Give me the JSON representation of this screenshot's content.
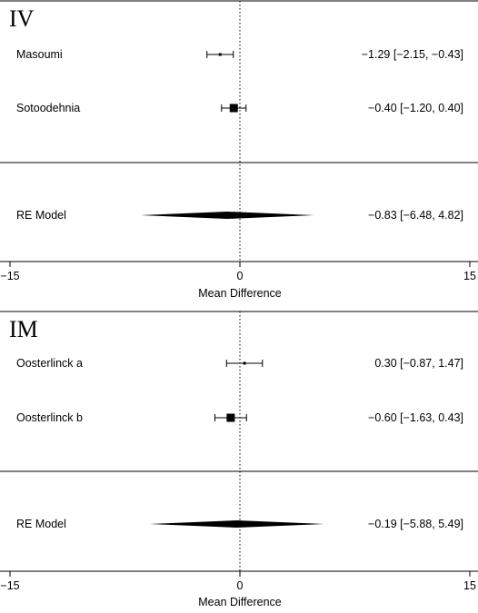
{
  "chart_data": [
    {
      "type": "forest",
      "title": "IV",
      "xlabel": "Mean Difference",
      "xlim": [
        -15,
        15
      ],
      "xticks": [
        -15,
        0,
        15
      ],
      "tick_labels": [
        "−15",
        "0",
        "15"
      ],
      "reference_line": 0,
      "studies": [
        {
          "name": "Masoumi",
          "estimate": -1.29,
          "ci_low": -2.15,
          "ci_high": -0.43,
          "ci_text": "−1.29 [−2.15, −0.43]",
          "weight": "small"
        },
        {
          "name": "Sotoodehnia",
          "estimate": -0.4,
          "ci_low": -1.2,
          "ci_high": 0.4,
          "ci_text": "−0.40 [−1.20,  0.40]",
          "weight": "large"
        }
      ],
      "summary": {
        "name": "RE Model",
        "estimate": -0.83,
        "ci_low": -6.48,
        "ci_high": 4.82,
        "ci_text": "−0.83 [−6.48,  4.82]"
      }
    },
    {
      "type": "forest",
      "title": "IM",
      "xlabel": "Mean Difference",
      "xlim": [
        -15,
        15
      ],
      "xticks": [
        -15,
        0,
        15
      ],
      "tick_labels": [
        "−15",
        "0",
        "15"
      ],
      "reference_line": 0,
      "studies": [
        {
          "name": "Oosterlinck a",
          "estimate": 0.3,
          "ci_low": -0.87,
          "ci_high": 1.47,
          "ci_text": "0.30 [−0.87, 1.47]",
          "weight": "small"
        },
        {
          "name": "Oosterlinck b",
          "estimate": -0.6,
          "ci_low": -1.63,
          "ci_high": 0.43,
          "ci_text": "−0.60 [−1.63, 0.43]",
          "weight": "large"
        }
      ],
      "summary": {
        "name": "RE Model",
        "estimate": -0.19,
        "ci_low": -5.88,
        "ci_high": 5.49,
        "ci_text": "−0.19 [−5.88, 5.49]"
      }
    }
  ]
}
